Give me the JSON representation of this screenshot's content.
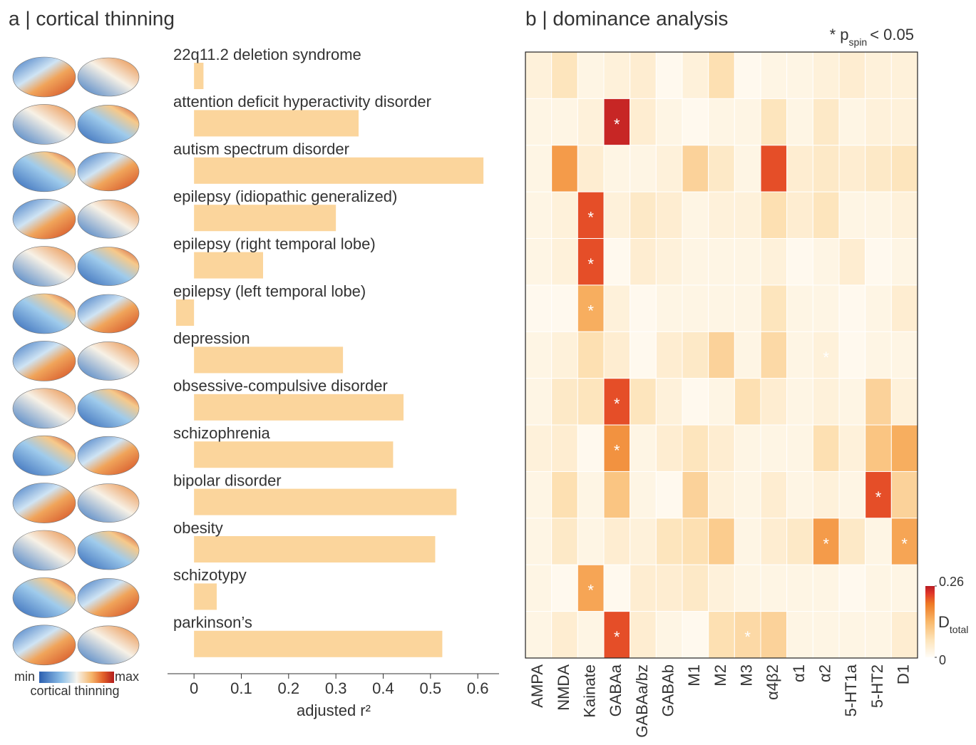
{
  "chart_data": [
    {
      "type": "bar",
      "orientation": "horizontal",
      "title": "a | cortical thinning",
      "categories": [
        "22q11.2 deletion syndrome",
        "attention deficit hyperactivity disorder",
        "autism spectrum disorder",
        "epilepsy (idiopathic generalized)",
        "epilepsy (right temporal lobe)",
        "epilepsy (left temporal lobe)",
        "depression",
        "obsessive-compulsive disorder",
        "schizophrenia",
        "bipolar disorder",
        "obesity",
        "schizotypy",
        "parkinson’s"
      ],
      "values": [
        0.02,
        0.348,
        0.612,
        0.3,
        0.146,
        -0.038,
        0.315,
        0.443,
        0.421,
        0.555,
        0.51,
        0.048,
        0.525
      ],
      "color": "#fbd59c",
      "xlim": [
        -0.056,
        0.645
      ],
      "xticks": [
        0,
        0.1,
        0.2,
        0.3,
        0.4,
        0.5,
        0.6
      ],
      "xlabel": "adjusted r²",
      "brain_legend": {
        "min": "min",
        "max": "max",
        "label": "cortical thinning"
      }
    },
    {
      "type": "heatmap",
      "title": "b | dominance analysis",
      "note": {
        "prefix": "* p",
        "sub": "spin",
        "suffix": "< 0.05"
      },
      "categories": [
        "AMPA",
        "NMDA",
        "Kainate",
        "GABAa",
        "GABAa/bz",
        "GABAb",
        "M1",
        "M2",
        "M3",
        "α4β2",
        "α1",
        "α2",
        "5-HT1a",
        "5-HT2",
        "D1"
      ],
      "values": [
        [
          0.03,
          0.06,
          0.02,
          0.03,
          0.04,
          0.01,
          0.03,
          0.07,
          0.01,
          0.02,
          0.02,
          0.03,
          0.04,
          0.03,
          0.03
        ],
        [
          0.02,
          0.02,
          0.03,
          0.25,
          0.04,
          0.02,
          0.01,
          0.02,
          0.02,
          0.06,
          0.02,
          0.05,
          0.02,
          0.03,
          0.03
        ],
        [
          0.02,
          0.16,
          0.04,
          0.02,
          0.02,
          0.03,
          0.09,
          0.05,
          0.02,
          0.22,
          0.04,
          0.05,
          0.04,
          0.05,
          0.06
        ],
        [
          0.02,
          0.03,
          0.22,
          0.03,
          0.05,
          0.04,
          0.02,
          0.03,
          0.03,
          0.07,
          0.04,
          0.06,
          0.02,
          0.02,
          0.03
        ],
        [
          0.02,
          0.03,
          0.22,
          0.01,
          0.04,
          0.03,
          0.02,
          0.02,
          0.02,
          0.03,
          0.01,
          0.02,
          0.04,
          0.01,
          0.02
        ],
        [
          0.01,
          0.01,
          0.14,
          0.03,
          0.01,
          0.02,
          0.02,
          0.02,
          0.02,
          0.06,
          0.02,
          0.02,
          0.01,
          0.02,
          0.04
        ],
        [
          0.02,
          0.03,
          0.07,
          0.04,
          0.01,
          0.04,
          0.05,
          0.09,
          0.02,
          0.08,
          0.02,
          0.03,
          0.01,
          0.02,
          0.02
        ],
        [
          0.02,
          0.05,
          0.06,
          0.22,
          0.06,
          0.03,
          0.01,
          0.02,
          0.07,
          0.04,
          0.02,
          0.03,
          0.02,
          0.09,
          0.03
        ],
        [
          0.03,
          0.04,
          0.01,
          0.17,
          0.02,
          0.04,
          0.06,
          0.04,
          0.02,
          0.02,
          0.02,
          0.07,
          0.03,
          0.11,
          0.14
        ],
        [
          0.02,
          0.07,
          0.02,
          0.11,
          0.02,
          0.01,
          0.09,
          0.03,
          0.02,
          0.04,
          0.02,
          0.03,
          0.02,
          0.22,
          0.09
        ],
        [
          0.02,
          0.05,
          0.02,
          0.04,
          0.03,
          0.06,
          0.07,
          0.1,
          0.02,
          0.04,
          0.05,
          0.16,
          0.05,
          0.02,
          0.15
        ],
        [
          0.02,
          0.01,
          0.15,
          0.01,
          0.04,
          0.04,
          0.05,
          0.03,
          0.02,
          0.02,
          0.02,
          0.02,
          0.01,
          0.02,
          0.02
        ],
        [
          0.02,
          0.04,
          0.02,
          0.22,
          0.04,
          0.02,
          0.01,
          0.07,
          0.08,
          0.09,
          0.02,
          0.02,
          0.02,
          0.02,
          0.04
        ]
      ],
      "cell_labels": [
        [
          null,
          null,
          null,
          null,
          null,
          null,
          null,
          null,
          null,
          null,
          null,
          null,
          null,
          null,
          null
        ],
        [
          null,
          null,
          null,
          "*",
          null,
          null,
          null,
          null,
          null,
          null,
          null,
          null,
          null,
          null,
          null
        ],
        [
          null,
          null,
          null,
          null,
          null,
          null,
          null,
          null,
          null,
          null,
          null,
          null,
          null,
          null,
          null
        ],
        [
          null,
          null,
          "*",
          null,
          null,
          null,
          null,
          null,
          null,
          null,
          null,
          null,
          null,
          null,
          null
        ],
        [
          null,
          null,
          "*",
          null,
          null,
          null,
          null,
          null,
          null,
          null,
          null,
          null,
          null,
          null,
          null
        ],
        [
          null,
          null,
          "*",
          null,
          null,
          null,
          null,
          null,
          null,
          null,
          null,
          null,
          null,
          null,
          null
        ],
        [
          null,
          null,
          null,
          null,
          null,
          null,
          null,
          null,
          null,
          null,
          null,
          "*",
          null,
          null,
          null
        ],
        [
          null,
          null,
          null,
          "*",
          null,
          null,
          null,
          null,
          null,
          null,
          null,
          null,
          null,
          null,
          null
        ],
        [
          null,
          null,
          null,
          "*",
          null,
          null,
          null,
          null,
          null,
          null,
          null,
          null,
          null,
          null,
          null
        ],
        [
          null,
          null,
          null,
          null,
          null,
          null,
          null,
          null,
          null,
          null,
          null,
          null,
          null,
          "*",
          null
        ],
        [
          null,
          null,
          null,
          null,
          null,
          null,
          null,
          null,
          null,
          null,
          null,
          "*",
          null,
          null,
          "*"
        ],
        [
          null,
          null,
          "*",
          null,
          null,
          null,
          null,
          null,
          null,
          null,
          null,
          null,
          null,
          null,
          null
        ],
        [
          null,
          null,
          null,
          "*",
          null,
          null,
          null,
          null,
          "*",
          null,
          null,
          null,
          null,
          null,
          null
        ]
      ],
      "zlim": [
        0,
        0.26
      ],
      "zticks": [
        0,
        0.26
      ],
      "colorbar_label": "D",
      "colorbar_label_sub": "total"
    }
  ]
}
